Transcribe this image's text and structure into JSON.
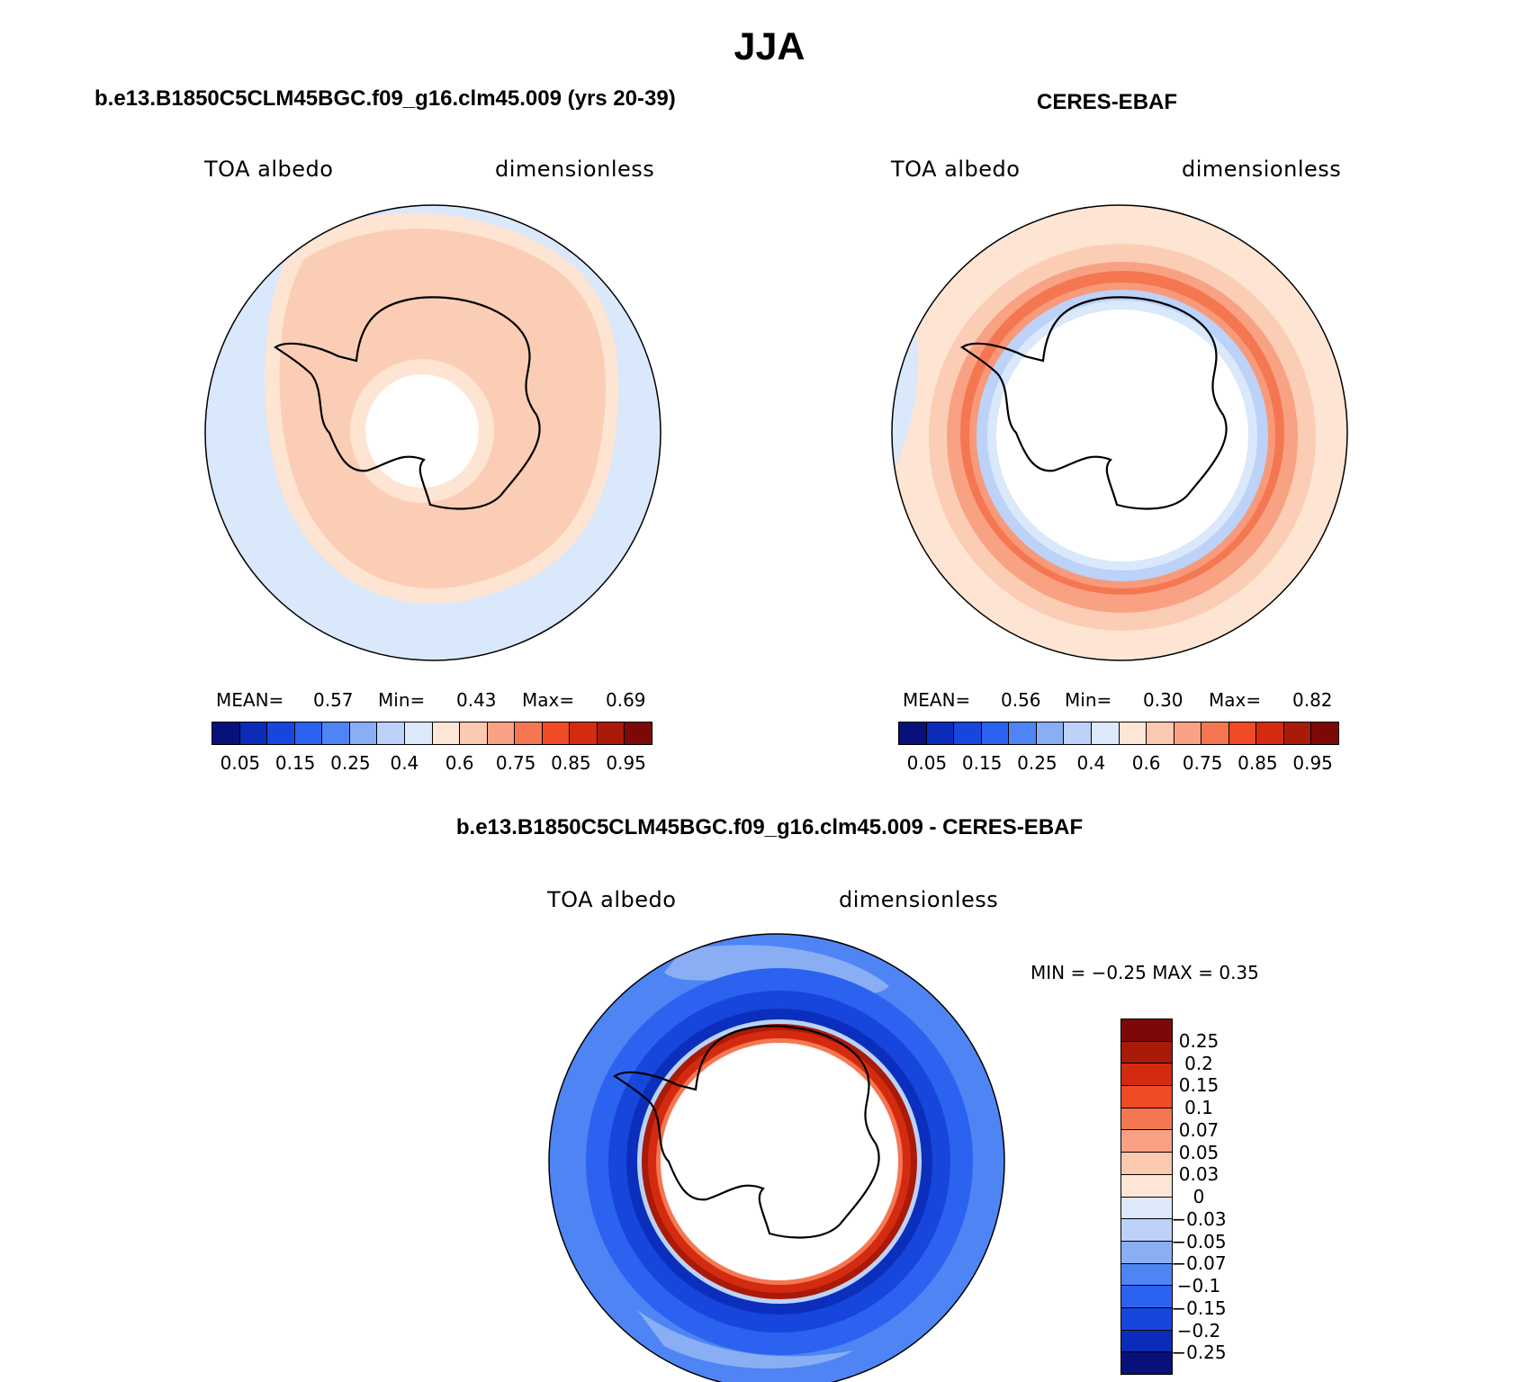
{
  "title": "JJA",
  "panels": {
    "model": {
      "case_title": "b.e13.B1850C5CLM45BGC.f09_g16.clm45.009 (yrs 20-39)",
      "left_label": "TOA albedo",
      "right_label": "dimensionless",
      "mean_label": "MEAN=",
      "mean": "0.57",
      "min_label": "Min=",
      "min": "0.43",
      "max_label": "Max=",
      "max": "0.69"
    },
    "obs": {
      "case_title": "CERES-EBAF",
      "left_label": "TOA albedo",
      "right_label": "dimensionless",
      "mean_label": "MEAN=",
      "mean": "0.56",
      "min_label": "Min=",
      "min": "0.30",
      "max_label": "Max=",
      "max": "0.82"
    },
    "diff": {
      "case_title": "b.e13.B1850C5CLM45BGC.f09_g16.clm45.009 - CERES-EBAF",
      "left_label": "TOA albedo",
      "right_label": "dimensionless",
      "minmax_text": "MIN =   −0.25 MAX =    0.35"
    }
  },
  "abs_colorbar": {
    "colors": [
      "#08107a",
      "#0a2cb8",
      "#1646dc",
      "#2b62f0",
      "#4f84f4",
      "#8aaef4",
      "#bcd2f8",
      "#dde9fb",
      "#fde6d6",
      "#fbc8b0",
      "#f8a283",
      "#f57752",
      "#f04a26",
      "#d42b10",
      "#a91a08",
      "#7d0808"
    ],
    "tick_labels": [
      "0.05",
      "0.15",
      "0.25",
      "0.4",
      "0.6",
      "0.75",
      "0.85",
      "0.95"
    ]
  },
  "diff_colorbar": {
    "colors": [
      "#7d0808",
      "#a91a08",
      "#d42b10",
      "#f04a26",
      "#f57752",
      "#f8a283",
      "#fbc8b0",
      "#fde6d6",
      "#dde9fb",
      "#bcd2f8",
      "#8aaef4",
      "#4f84f4",
      "#2b62f0",
      "#1646dc",
      "#0a2cb8",
      "#08107a"
    ],
    "tick_labels": [
      "0.25",
      "0.2",
      "0.15",
      "0.1",
      "0.07",
      "0.05",
      "0.03",
      "0",
      "−0.03",
      "−0.05",
      "−0.07",
      "−0.1",
      "−0.15",
      "−0.2",
      "−0.25"
    ]
  }
}
